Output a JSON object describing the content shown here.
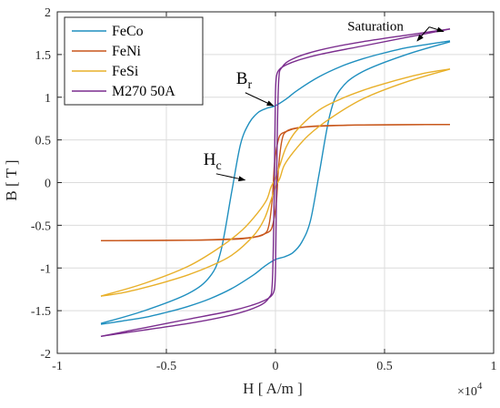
{
  "chart_data": {
    "type": "line",
    "xlabel": "H [ A/m ]",
    "ylabel": "B [ T ]",
    "x_multiplier": "×10",
    "x_multiplier_exp": "4",
    "xlim": [
      -1,
      1
    ],
    "ylim": [
      -2,
      2
    ],
    "xticks": [
      -1,
      -0.5,
      0,
      0.5,
      1
    ],
    "xtick_labels": [
      "-1",
      "-0.5",
      "0",
      "0.5",
      "1"
    ],
    "yticks": [
      -2,
      -1.5,
      -1,
      -0.5,
      0,
      0.5,
      1,
      1.5,
      2
    ],
    "ytick_labels": [
      "-2",
      "-1.5",
      "-1",
      "-0.5",
      "0",
      "0.5",
      "1",
      "1.5",
      "2"
    ],
    "grid": true,
    "legend_position": "top-left",
    "series": [
      {
        "name": "FeCo",
        "color": "#1f8fbf",
        "upper": [
          [
            -0.8,
            -1.65
          ],
          [
            -0.6,
            -1.5
          ],
          [
            -0.4,
            -1.3
          ],
          [
            -0.3,
            -1.1
          ],
          [
            -0.25,
            -0.8
          ],
          [
            -0.2,
            -0.1
          ],
          [
            -0.16,
            0.45
          ],
          [
            -0.12,
            0.7
          ],
          [
            -0.08,
            0.82
          ],
          [
            -0.04,
            0.87
          ],
          [
            0,
            0.9
          ],
          [
            0.05,
            0.98
          ],
          [
            0.1,
            1.08
          ],
          [
            0.2,
            1.24
          ],
          [
            0.3,
            1.36
          ],
          [
            0.4,
            1.45
          ],
          [
            0.5,
            1.52
          ],
          [
            0.6,
            1.58
          ],
          [
            0.7,
            1.62
          ],
          [
            0.8,
            1.66
          ]
        ],
        "lower": [
          [
            -0.8,
            -1.66
          ],
          [
            -0.7,
            -1.62
          ],
          [
            -0.6,
            -1.58
          ],
          [
            -0.5,
            -1.52
          ],
          [
            -0.4,
            -1.45
          ],
          [
            -0.3,
            -1.36
          ],
          [
            -0.2,
            -1.24
          ],
          [
            -0.1,
            -1.08
          ],
          [
            -0.05,
            -0.98
          ],
          [
            0,
            -0.9
          ],
          [
            0.04,
            -0.87
          ],
          [
            0.08,
            -0.82
          ],
          [
            0.12,
            -0.7
          ],
          [
            0.16,
            -0.45
          ],
          [
            0.2,
            0.1
          ],
          [
            0.25,
            0.8
          ],
          [
            0.3,
            1.1
          ],
          [
            0.4,
            1.3
          ],
          [
            0.6,
            1.5
          ],
          [
            0.8,
            1.65
          ]
        ]
      },
      {
        "name": "FeNi",
        "color": "#c8571b",
        "upper": [
          [
            -0.8,
            -0.68
          ],
          [
            -0.4,
            -0.675
          ],
          [
            -0.2,
            -0.66
          ],
          [
            -0.1,
            -0.64
          ],
          [
            -0.05,
            -0.6
          ],
          [
            -0.03,
            -0.5
          ],
          [
            -0.015,
            -0.2
          ],
          [
            -0.005,
            0.2
          ],
          [
            0.005,
            0.4
          ],
          [
            0.02,
            0.55
          ],
          [
            0.05,
            0.6
          ],
          [
            0.1,
            0.64
          ],
          [
            0.2,
            0.665
          ],
          [
            0.4,
            0.675
          ],
          [
            0.8,
            0.68
          ]
        ],
        "lower": [
          [
            -0.8,
            -0.68
          ],
          [
            -0.4,
            -0.675
          ],
          [
            -0.2,
            -0.665
          ],
          [
            -0.1,
            -0.64
          ],
          [
            -0.05,
            -0.6
          ],
          [
            -0.02,
            -0.55
          ],
          [
            -0.005,
            -0.4
          ],
          [
            0.005,
            -0.2
          ],
          [
            0.015,
            0.2
          ],
          [
            0.03,
            0.5
          ],
          [
            0.05,
            0.6
          ],
          [
            0.1,
            0.64
          ],
          [
            0.2,
            0.66
          ],
          [
            0.4,
            0.675
          ],
          [
            0.8,
            0.68
          ]
        ]
      },
      {
        "name": "FeSi",
        "color": "#e8b02a",
        "upper": [
          [
            -0.8,
            -1.33
          ],
          [
            -0.6,
            -1.18
          ],
          [
            -0.4,
            -0.98
          ],
          [
            -0.25,
            -0.75
          ],
          [
            -0.15,
            -0.55
          ],
          [
            -0.08,
            -0.35
          ],
          [
            -0.04,
            -0.2
          ],
          [
            -0.02,
            -0.05
          ],
          [
            0,
            0.05
          ],
          [
            0.02,
            0.2
          ],
          [
            0.05,
            0.42
          ],
          [
            0.1,
            0.62
          ],
          [
            0.2,
            0.85
          ],
          [
            0.3,
            0.98
          ],
          [
            0.4,
            1.08
          ],
          [
            0.5,
            1.16
          ],
          [
            0.6,
            1.23
          ],
          [
            0.7,
            1.29
          ],
          [
            0.8,
            1.33
          ]
        ],
        "lower": [
          [
            -0.8,
            -1.33
          ],
          [
            -0.7,
            -1.29
          ],
          [
            -0.6,
            -1.23
          ],
          [
            -0.5,
            -1.16
          ],
          [
            -0.4,
            -1.08
          ],
          [
            -0.3,
            -0.98
          ],
          [
            -0.2,
            -0.85
          ],
          [
            -0.1,
            -0.62
          ],
          [
            -0.05,
            -0.42
          ],
          [
            -0.02,
            -0.2
          ],
          [
            0,
            -0.05
          ],
          [
            0.02,
            0.05
          ],
          [
            0.04,
            0.2
          ],
          [
            0.08,
            0.35
          ],
          [
            0.15,
            0.55
          ],
          [
            0.25,
            0.75
          ],
          [
            0.4,
            0.98
          ],
          [
            0.6,
            1.18
          ],
          [
            0.8,
            1.33
          ]
        ]
      },
      {
        "name": "M270 50A",
        "color": "#7b2d8e",
        "upper": [
          [
            -0.8,
            -1.8
          ],
          [
            -0.4,
            -1.65
          ],
          [
            -0.2,
            -1.55
          ],
          [
            -0.08,
            -1.45
          ],
          [
            -0.03,
            -1.35
          ],
          [
            -0.015,
            -1.2
          ],
          [
            -0.008,
            -0.5
          ],
          [
            -0.003,
            0.5
          ],
          [
            0,
            1.05
          ],
          [
            0.005,
            1.25
          ],
          [
            0.02,
            1.33
          ],
          [
            0.05,
            1.38
          ],
          [
            0.1,
            1.43
          ],
          [
            0.2,
            1.5
          ],
          [
            0.4,
            1.6
          ],
          [
            0.6,
            1.7
          ],
          [
            0.8,
            1.8
          ]
        ],
        "lower": [
          [
            -0.8,
            -1.8
          ],
          [
            -0.6,
            -1.7
          ],
          [
            -0.4,
            -1.6
          ],
          [
            -0.2,
            -1.5
          ],
          [
            -0.1,
            -1.43
          ],
          [
            -0.05,
            -1.38
          ],
          [
            -0.02,
            -1.33
          ],
          [
            -0.005,
            -1.25
          ],
          [
            0,
            -1.05
          ],
          [
            0.003,
            -0.5
          ],
          [
            0.008,
            0.5
          ],
          [
            0.015,
            1.2
          ],
          [
            0.03,
            1.35
          ],
          [
            0.08,
            1.45
          ],
          [
            0.2,
            1.55
          ],
          [
            0.4,
            1.65
          ],
          [
            0.8,
            1.8
          ]
        ]
      }
    ],
    "annotations": [
      {
        "text": "Saturation",
        "text_at": [
          0.33,
          1.78
        ],
        "arrows_to": [
          [
            0.65,
            1.66
          ],
          [
            0.77,
            1.77
          ]
        ]
      },
      {
        "text": "B",
        "sub": "r",
        "text_at": [
          -0.18,
          1.16
        ],
        "arrows_to": [
          [
            -0.01,
            0.9
          ]
        ]
      },
      {
        "text": "H",
        "sub": "c",
        "text_at": [
          -0.33,
          0.21
        ],
        "arrows_to": [
          [
            -0.14,
            0.03
          ]
        ]
      }
    ]
  }
}
